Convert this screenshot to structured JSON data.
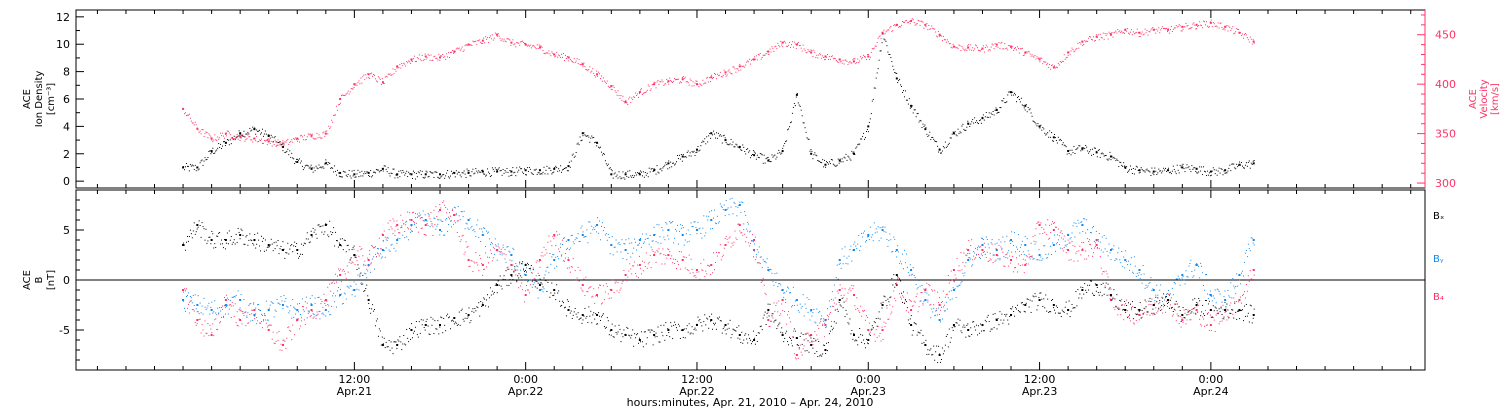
{
  "chart_data": [
    {
      "type": "scatter",
      "panel": "top",
      "ylabel_left": [
        "ACE",
        "Ion Density",
        "[cm⁻³]"
      ],
      "ylabel_right": [
        "ACE",
        "Velocity",
        "[km/s]"
      ],
      "ylim_left": [
        -0.5,
        12.5
      ],
      "ylim_right": [
        295,
        475
      ],
      "left_ticks": [
        "0",
        "2",
        "4",
        "6",
        "8",
        "10",
        "12"
      ],
      "right_ticks": [
        "300",
        "350",
        "400",
        "450"
      ],
      "series": [
        {
          "name": "Density",
          "axis": "left",
          "color": "#000000",
          "x": [
            0,
            1,
            2,
            3,
            4,
            5,
            6,
            7,
            8,
            9,
            10,
            11,
            12,
            13,
            14,
            15,
            16,
            17,
            18,
            19,
            20,
            21,
            22,
            23,
            24,
            25,
            26,
            27,
            28,
            29,
            30,
            31,
            32,
            33,
            34,
            35,
            36,
            37,
            38,
            39,
            40,
            41,
            42,
            43,
            44,
            45,
            46,
            47,
            48,
            49,
            50,
            51,
            52,
            53,
            54,
            55,
            56,
            57,
            58,
            59,
            60,
            61,
            62,
            63,
            64,
            65,
            66,
            67,
            68,
            69,
            70,
            71,
            72,
            73,
            74,
            75
          ],
          "y": [
            1.0,
            1.0,
            2.2,
            2.8,
            3.5,
            3.8,
            3.3,
            2.5,
            1.4,
            0.9,
            1.3,
            0.6,
            0.5,
            0.6,
            0.9,
            0.5,
            0.5,
            0.5,
            0.5,
            0.6,
            0.6,
            0.7,
            0.7,
            0.7,
            0.8,
            0.8,
            0.9,
            1.1,
            3.5,
            2.8,
            0.5,
            0.5,
            0.5,
            0.8,
            1.3,
            1.8,
            2.3,
            3.5,
            3.0,
            2.5,
            1.9,
            1.5,
            2.2,
            6.3,
            2.0,
            1.2,
            1.5,
            2.0,
            4.0,
            10.8,
            7.5,
            5.5,
            3.8,
            2.3,
            3.5,
            4.2,
            4.6,
            5.2,
            6.5,
            5.5,
            4.0,
            3.2,
            2.2,
            2.4,
            2.1,
            1.8,
            1.0,
            0.8,
            0.7,
            0.8,
            1.0,
            0.9,
            0.7,
            0.8,
            1.2,
            1.3
          ]
        },
        {
          "name": "Velocity",
          "axis": "right",
          "color": "#ff3366",
          "x": [
            0,
            1,
            2,
            3,
            4,
            5,
            6,
            7,
            8,
            9,
            10,
            11,
            12,
            13,
            14,
            15,
            16,
            17,
            18,
            19,
            20,
            21,
            22,
            23,
            24,
            25,
            26,
            27,
            28,
            29,
            30,
            31,
            32,
            33,
            34,
            35,
            36,
            37,
            38,
            39,
            40,
            41,
            42,
            43,
            44,
            45,
            46,
            47,
            48,
            49,
            50,
            51,
            52,
            53,
            54,
            55,
            56,
            57,
            58,
            59,
            60,
            61,
            62,
            63,
            64,
            65,
            66,
            67,
            68,
            69,
            70,
            71,
            72,
            73,
            74,
            75
          ],
          "y": [
            375,
            355,
            345,
            350,
            347,
            345,
            342,
            340,
            345,
            348,
            350,
            385,
            400,
            410,
            402,
            418,
            425,
            428,
            427,
            433,
            440,
            444,
            450,
            442,
            440,
            437,
            430,
            427,
            420,
            410,
            398,
            382,
            392,
            400,
            403,
            405,
            400,
            407,
            412,
            418,
            425,
            433,
            442,
            440,
            432,
            428,
            425,
            423,
            428,
            452,
            460,
            464,
            460,
            450,
            438,
            437,
            436,
            440,
            438,
            432,
            425,
            417,
            432,
            443,
            448,
            450,
            455,
            452,
            455,
            455,
            458,
            460,
            462,
            458,
            452,
            443
          ]
        }
      ]
    },
    {
      "type": "scatter",
      "panel": "bottom",
      "ylabel_left": [
        "ACE",
        "B",
        "[nT]"
      ],
      "ylim": [
        -9,
        9
      ],
      "left_ticks": [
        "-5",
        "0",
        "5"
      ],
      "zero_line": true,
      "legend": [
        "Bₓ",
        "Bᵧ",
        "B₄"
      ],
      "legend_position": "right",
      "series": [
        {
          "name": "Bx",
          "color": "#000000",
          "x": [
            0,
            1,
            2,
            3,
            4,
            5,
            6,
            7,
            8,
            9,
            10,
            11,
            12,
            13,
            14,
            15,
            16,
            17,
            18,
            19,
            20,
            21,
            22,
            23,
            24,
            25,
            26,
            27,
            28,
            29,
            30,
            31,
            32,
            33,
            34,
            35,
            36,
            37,
            38,
            39,
            40,
            41,
            42,
            43,
            44,
            45,
            46,
            47,
            48,
            49,
            50,
            51,
            52,
            53,
            54,
            55,
            56,
            57,
            58,
            59,
            60,
            61,
            62,
            63,
            64,
            65,
            66,
            67,
            68,
            69,
            70,
            71,
            72,
            73,
            74,
            75
          ],
          "y": [
            3.5,
            5.5,
            4.0,
            4.0,
            4.5,
            4.0,
            3.5,
            3.0,
            3.0,
            4.5,
            5.5,
            3.5,
            2.5,
            -2.0,
            -6.5,
            -6.5,
            -5.0,
            -4.5,
            -4.5,
            -3.8,
            -3.5,
            -2.5,
            -0.5,
            0.5,
            1.5,
            -0.5,
            -1.0,
            -3.0,
            -3.5,
            -3.5,
            -5.0,
            -5.5,
            -6.0,
            -5.5,
            -5.0,
            -5.0,
            -4.5,
            -4.0,
            -4.5,
            -5.5,
            -6.0,
            -3.0,
            -5.5,
            -5.8,
            -6.5,
            -7.0,
            -2.0,
            -5.5,
            -6.0,
            -2.5,
            0.5,
            -4.5,
            -6.5,
            -7.5,
            -4.5,
            -5.0,
            -4.5,
            -4.0,
            -3.5,
            -2.5,
            -2.0,
            -2.5,
            -3.0,
            -1.0,
            -0.5,
            -1.5,
            -3.0,
            -3.0,
            -2.5,
            -2.0,
            -3.5,
            -2.5,
            -3.0,
            -3.0,
            -3.0,
            -3.5
          ]
        },
        {
          "name": "By",
          "color": "#1188ee",
          "x": [
            0,
            1,
            2,
            3,
            4,
            5,
            6,
            7,
            8,
            9,
            10,
            11,
            12,
            13,
            14,
            15,
            16,
            17,
            18,
            19,
            20,
            21,
            22,
            23,
            24,
            25,
            26,
            27,
            28,
            29,
            30,
            31,
            32,
            33,
            34,
            35,
            36,
            37,
            38,
            39,
            40,
            41,
            42,
            43,
            44,
            45,
            46,
            47,
            48,
            49,
            50,
            51,
            52,
            53,
            54,
            55,
            56,
            57,
            58,
            59,
            60,
            61,
            62,
            63,
            64,
            65,
            66,
            67,
            68,
            69,
            70,
            71,
            72,
            73,
            74,
            75
          ],
          "y": [
            -2.0,
            -2.5,
            -3.0,
            -2.5,
            -2.0,
            -3.5,
            -3.0,
            -2.5,
            -3.0,
            -2.5,
            -3.0,
            -1.5,
            -1.0,
            1.5,
            3.0,
            4.0,
            5.5,
            6.0,
            5.0,
            6.5,
            6.0,
            4.5,
            3.0,
            2.5,
            0.5,
            -1.0,
            2.0,
            4.0,
            4.5,
            5.5,
            3.5,
            3.0,
            4.0,
            4.5,
            5.0,
            4.5,
            5.0,
            6.0,
            7.0,
            7.5,
            3.0,
            1.0,
            -1.0,
            -2.0,
            -3.0,
            -4.0,
            2.0,
            3.0,
            4.5,
            5.0,
            3.0,
            1.0,
            -2.0,
            -4.0,
            -1.0,
            2.0,
            3.5,
            3.0,
            4.0,
            3.5,
            2.5,
            3.5,
            4.5,
            5.5,
            4.0,
            3.0,
            2.0,
            1.0,
            -1.0,
            -2.0,
            0.5,
            1.5,
            -1.5,
            -2.0,
            0.5,
            4.0
          ]
        },
        {
          "name": "Bz",
          "color": "#ff3366",
          "x": [
            0,
            1,
            2,
            3,
            4,
            5,
            6,
            7,
            8,
            9,
            10,
            11,
            12,
            13,
            14,
            15,
            16,
            17,
            18,
            19,
            20,
            21,
            22,
            23,
            24,
            25,
            26,
            27,
            28,
            29,
            30,
            31,
            32,
            33,
            34,
            35,
            36,
            37,
            38,
            39,
            40,
            41,
            42,
            43,
            44,
            45,
            46,
            47,
            48,
            49,
            50,
            51,
            52,
            53,
            54,
            55,
            56,
            57,
            58,
            59,
            60,
            61,
            62,
            63,
            64,
            65,
            66,
            67,
            68,
            69,
            70,
            71,
            72,
            73,
            74,
            75
          ],
          "y": [
            -1.0,
            -4.0,
            -5.5,
            -2.0,
            -4.0,
            -3.0,
            -5.0,
            -6.5,
            -4.0,
            -3.0,
            -2.0,
            0.5,
            2.5,
            2.0,
            4.5,
            5.5,
            6.0,
            5.5,
            7.0,
            6.5,
            2.0,
            1.5,
            3.0,
            1.5,
            -1.5,
            2.0,
            4.5,
            2.0,
            -0.5,
            -1.5,
            -1.0,
            0.5,
            1.5,
            2.5,
            2.5,
            2.0,
            1.0,
            1.5,
            3.5,
            5.5,
            4.0,
            -4.0,
            -2.0,
            -7.5,
            -5.5,
            -4.5,
            -1.0,
            -1.5,
            -5.0,
            -5.0,
            -0.5,
            -3.0,
            -1.0,
            -2.5,
            1.0,
            3.0,
            3.0,
            2.5,
            2.0,
            1.5,
            5.5,
            5.0,
            3.0,
            3.0,
            3.5,
            -2.0,
            -3.0,
            -3.5,
            -2.5,
            -2.0,
            -4.0,
            -3.0,
            -4.5,
            -3.0,
            -2.0,
            1.0
          ]
        }
      ]
    },
    {
      "type": "time_axis",
      "xlim": [
        -7.5,
        87
      ],
      "tick_hours": [
        12,
        24,
        36,
        48,
        60,
        72
      ],
      "tick_labels": [
        [
          "12:00",
          "Apr.21"
        ],
        [
          "0:00",
          "Apr.22"
        ],
        [
          "12:00",
          "Apr.22"
        ],
        [
          "0:00",
          "Apr.23"
        ],
        [
          "12:00",
          "Apr.23"
        ],
        [
          "0:00",
          "Apr.24"
        ]
      ],
      "minor_tick_step_hours": 2,
      "xlabel": "hours:minutes, Apr. 21, 2010 – Apr. 24, 2010"
    }
  ]
}
